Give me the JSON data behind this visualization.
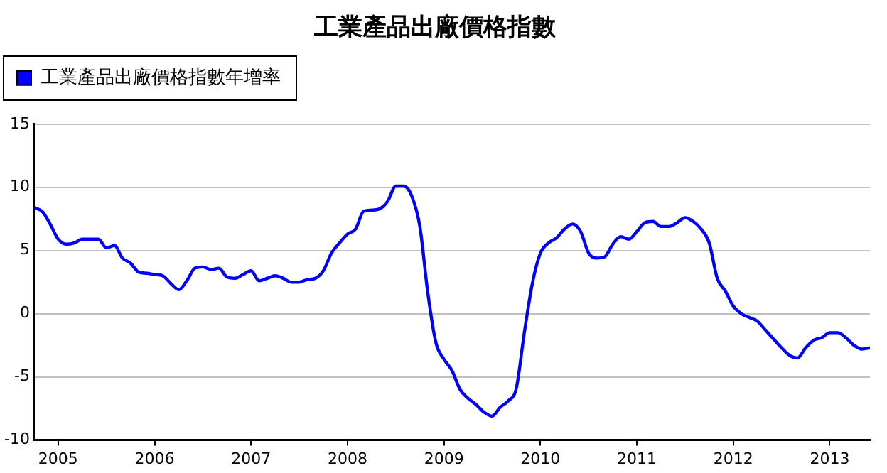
{
  "chart_data": {
    "type": "line",
    "title": "工業產品出廠價格指數",
    "x": [
      "2004-10",
      "2004-11",
      "2004-12",
      "2005-01",
      "2005-02",
      "2005-03",
      "2005-04",
      "2005-05",
      "2005-06",
      "2005-07",
      "2005-08",
      "2005-09",
      "2005-10",
      "2005-11",
      "2005-12",
      "2006-01",
      "2006-02",
      "2006-03",
      "2006-04",
      "2006-05",
      "2006-06",
      "2006-07",
      "2006-08",
      "2006-09",
      "2006-10",
      "2006-11",
      "2006-12",
      "2007-01",
      "2007-02",
      "2007-03",
      "2007-04",
      "2007-05",
      "2007-06",
      "2007-07",
      "2007-08",
      "2007-09",
      "2007-10",
      "2007-11",
      "2007-12",
      "2008-01",
      "2008-02",
      "2008-03",
      "2008-04",
      "2008-05",
      "2008-06",
      "2008-07",
      "2008-08",
      "2008-09",
      "2008-10",
      "2008-11",
      "2008-12",
      "2009-01",
      "2009-02",
      "2009-03",
      "2009-04",
      "2009-05",
      "2009-06",
      "2009-07",
      "2009-08",
      "2009-09",
      "2009-10",
      "2009-11",
      "2009-12",
      "2010-01",
      "2010-02",
      "2010-03",
      "2010-04",
      "2010-05",
      "2010-06",
      "2010-07",
      "2010-08",
      "2010-09",
      "2010-10",
      "2010-11",
      "2010-12",
      "2011-01",
      "2011-02",
      "2011-03",
      "2011-04",
      "2011-05",
      "2011-06",
      "2011-07",
      "2011-08",
      "2011-09",
      "2011-10",
      "2011-11",
      "2011-12",
      "2012-01",
      "2012-02",
      "2012-03",
      "2012-04",
      "2012-05",
      "2012-06",
      "2012-07",
      "2012-08",
      "2012-09",
      "2012-10",
      "2012-11",
      "2012-12",
      "2013-01",
      "2013-02",
      "2013-03",
      "2013-04",
      "2013-05",
      "2013-06"
    ],
    "series": [
      {
        "name": "工業產品出廠價格指數年增率",
        "color": "#0000ff",
        "values": [
          8.4,
          8.1,
          7.1,
          5.9,
          5.5,
          5.6,
          5.9,
          5.9,
          5.9,
          5.2,
          5.4,
          4.4,
          4.0,
          3.3,
          3.2,
          3.1,
          3.0,
          2.4,
          1.9,
          2.6,
          3.6,
          3.7,
          3.5,
          3.6,
          2.9,
          2.8,
          3.1,
          3.4,
          2.6,
          2.8,
          3.0,
          2.8,
          2.5,
          2.5,
          2.7,
          2.8,
          3.4,
          4.8,
          5.6,
          6.3,
          6.7,
          8.1,
          8.2,
          8.3,
          8.9,
          10.1,
          10.1,
          9.3,
          6.9,
          1.6,
          -2.3,
          -3.6,
          -4.5,
          -6.0,
          -6.7,
          -7.2,
          -7.8,
          -8.1,
          -7.4,
          -6.9,
          -5.9,
          -1.5,
          2.4,
          4.8,
          5.6,
          6.0,
          6.7,
          7.1,
          6.5,
          4.8,
          4.4,
          4.5,
          5.5,
          6.1,
          5.9,
          6.5,
          7.2,
          7.3,
          6.9,
          6.9,
          7.2,
          7.6,
          7.3,
          6.7,
          5.6,
          2.8,
          1.8,
          0.6,
          0.0,
          -0.3,
          -0.6,
          -1.3,
          -2.0,
          -2.7,
          -3.3,
          -3.5,
          -2.7,
          -2.1,
          -1.9,
          -1.5,
          -1.5,
          -1.9,
          -2.5,
          -2.8,
          -2.7
        ]
      }
    ],
    "xlim": [
      "2004-10",
      "2013-06"
    ],
    "xticks": [
      "2005",
      "2006",
      "2007",
      "2008",
      "2009",
      "2010",
      "2011",
      "2012",
      "2013"
    ],
    "ylim": [
      -10,
      15
    ],
    "yticks": [
      -10,
      -5,
      0,
      5,
      10,
      15
    ],
    "grid": "y",
    "legend": "top left",
    "marker": "none",
    "line_style": "solid"
  }
}
